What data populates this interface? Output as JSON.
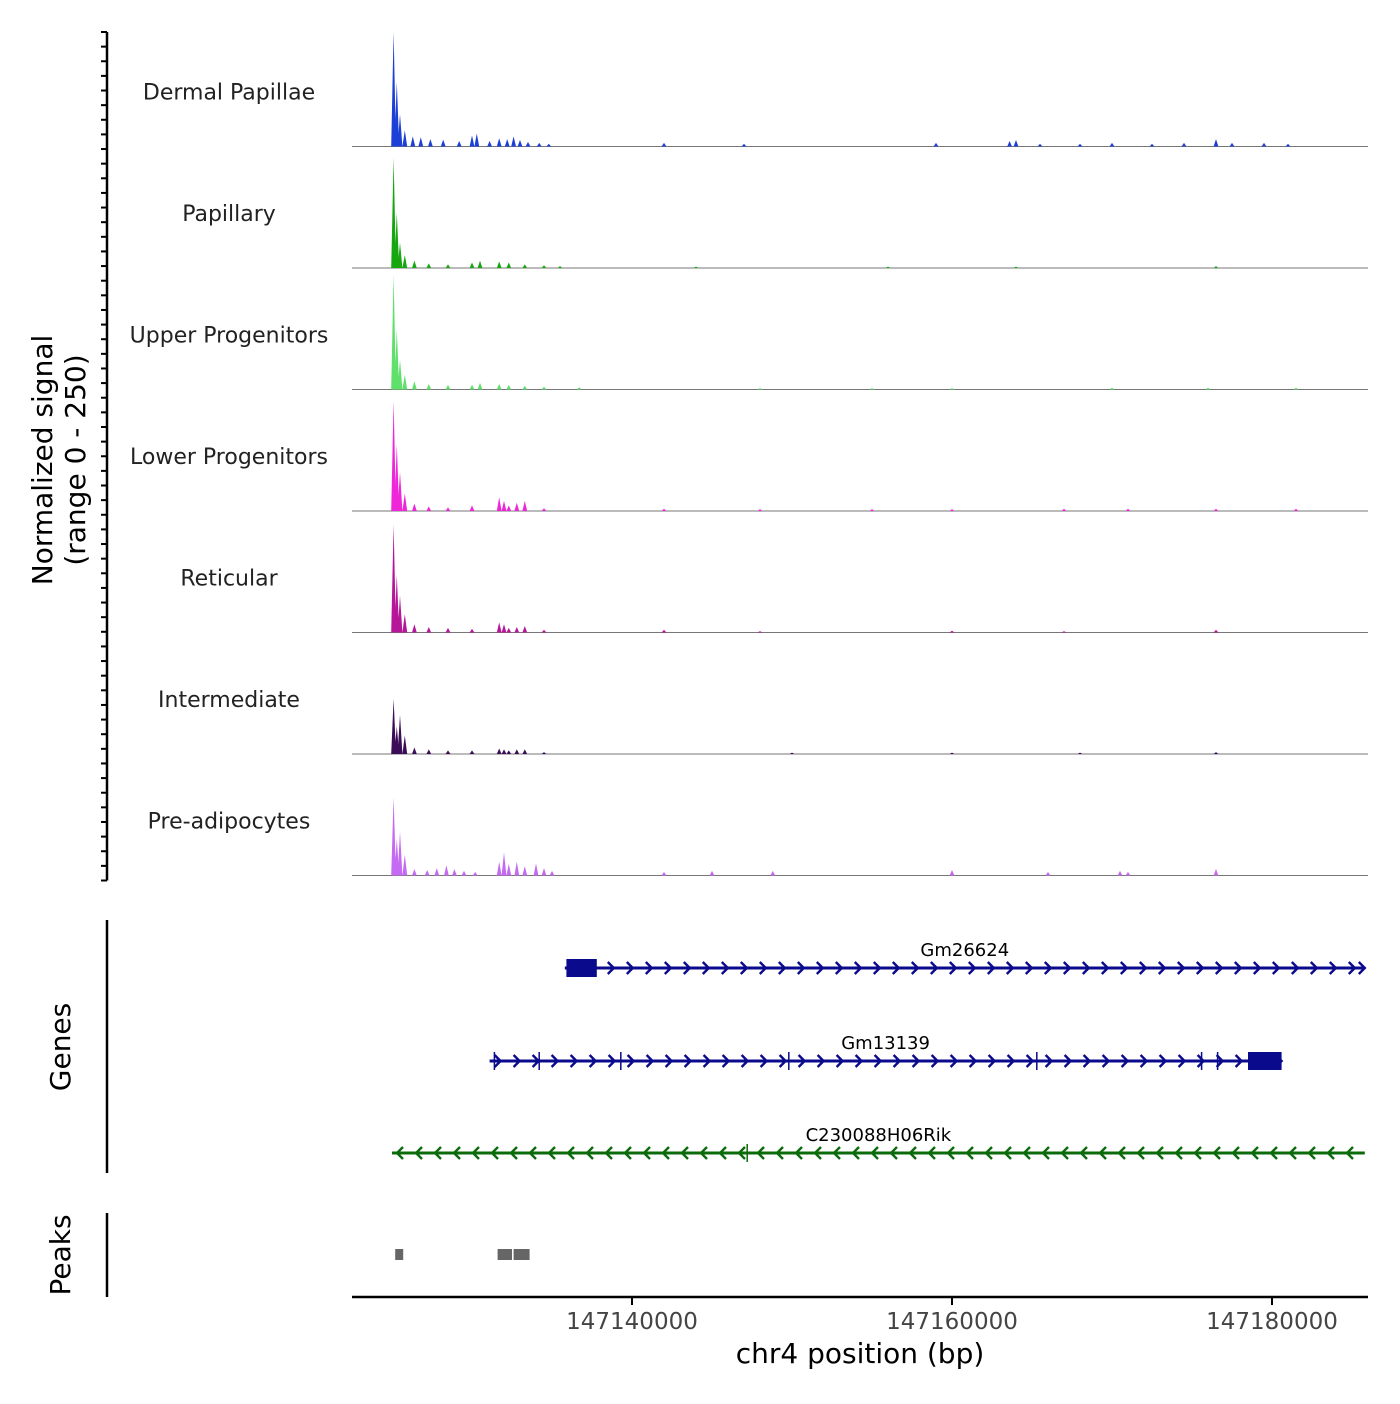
{
  "chart_data": {
    "type": "coverage",
    "title": "",
    "xlabel": "chr4 position (bp)",
    "ylabel": [
      "Normalized signal",
      "(range 0 - 250)"
    ],
    "y_range": [
      0,
      250
    ],
    "xlim": [
      147122500,
      147186000
    ],
    "x_ticks": [
      147140000,
      147160000,
      147180000
    ],
    "x_tick_labels": [
      "147140000",
      "147160000",
      "147180000"
    ],
    "tracks": [
      {
        "name": "Dermal Papillae",
        "color": "#1c3fd6",
        "peaks": [
          [
            147125100,
            250
          ],
          [
            147125300,
            140
          ],
          [
            147125500,
            70
          ],
          [
            147125800,
            35
          ],
          [
            147126300,
            22
          ],
          [
            147126800,
            20
          ],
          [
            147127400,
            16
          ],
          [
            147128200,
            15
          ],
          [
            147129200,
            12
          ],
          [
            147130000,
            24
          ],
          [
            147130300,
            28
          ],
          [
            147131100,
            12
          ],
          [
            147131700,
            18
          ],
          [
            147132200,
            16
          ],
          [
            147132600,
            22
          ],
          [
            147133000,
            14
          ],
          [
            147133500,
            10
          ],
          [
            147134200,
            8
          ],
          [
            147134800,
            6
          ],
          [
            147142000,
            8
          ],
          [
            147147000,
            6
          ],
          [
            147159000,
            8
          ],
          [
            147163600,
            12
          ],
          [
            147164000,
            14
          ],
          [
            147165500,
            6
          ],
          [
            147168000,
            6
          ],
          [
            147170000,
            8
          ],
          [
            147172500,
            6
          ],
          [
            147174500,
            8
          ],
          [
            147176500,
            16
          ],
          [
            147177500,
            8
          ],
          [
            147179500,
            8
          ],
          [
            147181000,
            6
          ]
        ]
      },
      {
        "name": "Papillary",
        "color": "#16a60f",
        "peaks": [
          [
            147125100,
            240
          ],
          [
            147125300,
            120
          ],
          [
            147125500,
            55
          ],
          [
            147125800,
            28
          ],
          [
            147126400,
            16
          ],
          [
            147127300,
            10
          ],
          [
            147128500,
            8
          ],
          [
            147130000,
            12
          ],
          [
            147130500,
            16
          ],
          [
            147131700,
            14
          ],
          [
            147132300,
            12
          ],
          [
            147133300,
            8
          ],
          [
            147134500,
            6
          ],
          [
            147135500,
            4
          ],
          [
            147144000,
            3
          ],
          [
            147156000,
            3
          ],
          [
            147164000,
            3
          ],
          [
            147176500,
            4
          ]
        ]
      },
      {
        "name": "Upper Progenitors",
        "color": "#5ee06a",
        "peaks": [
          [
            147125100,
            250
          ],
          [
            147125300,
            130
          ],
          [
            147125500,
            65
          ],
          [
            147125800,
            32
          ],
          [
            147126400,
            18
          ],
          [
            147127300,
            12
          ],
          [
            147128500,
            10
          ],
          [
            147130000,
            10
          ],
          [
            147130500,
            14
          ],
          [
            147131700,
            12
          ],
          [
            147132300,
            10
          ],
          [
            147133300,
            8
          ],
          [
            147134500,
            6
          ],
          [
            147136700,
            5
          ],
          [
            147148000,
            3
          ],
          [
            147155000,
            3
          ],
          [
            147160000,
            3
          ],
          [
            147170000,
            4
          ],
          [
            147176000,
            4
          ],
          [
            147181500,
            4
          ]
        ]
      },
      {
        "name": "Lower Progenitors",
        "color": "#ee27d8",
        "peaks": [
          [
            147125100,
            240
          ],
          [
            147125300,
            145
          ],
          [
            147125500,
            85
          ],
          [
            147125800,
            38
          ],
          [
            147126400,
            16
          ],
          [
            147127300,
            10
          ],
          [
            147128500,
            8
          ],
          [
            147130000,
            12
          ],
          [
            147131700,
            30
          ],
          [
            147132000,
            22
          ],
          [
            147132300,
            12
          ],
          [
            147132800,
            18
          ],
          [
            147133300,
            22
          ],
          [
            147134500,
            6
          ],
          [
            147142000,
            5
          ],
          [
            147148000,
            4
          ],
          [
            147155000,
            4
          ],
          [
            147160000,
            4
          ],
          [
            147167000,
            5
          ],
          [
            147171000,
            5
          ],
          [
            147176500,
            5
          ],
          [
            147181500,
            5
          ]
        ]
      },
      {
        "name": "Reticular",
        "color": "#b61799",
        "peaks": [
          [
            147125100,
            235
          ],
          [
            147125300,
            125
          ],
          [
            147125500,
            80
          ],
          [
            147125800,
            40
          ],
          [
            147126400,
            18
          ],
          [
            147127300,
            12
          ],
          [
            147128500,
            10
          ],
          [
            147130000,
            8
          ],
          [
            147131700,
            22
          ],
          [
            147132000,
            18
          ],
          [
            147132300,
            10
          ],
          [
            147132800,
            12
          ],
          [
            147133300,
            14
          ],
          [
            147134500,
            6
          ],
          [
            147142000,
            6
          ],
          [
            147148000,
            3
          ],
          [
            147160000,
            4
          ],
          [
            147167000,
            3
          ],
          [
            147176500,
            6
          ]
        ]
      },
      {
        "name": "Intermediate",
        "color": "#3a0d56",
        "peaks": [
          [
            147125100,
            120
          ],
          [
            147125300,
            60
          ],
          [
            147125500,
            85
          ],
          [
            147125800,
            40
          ],
          [
            147126400,
            14
          ],
          [
            147127300,
            10
          ],
          [
            147128500,
            8
          ],
          [
            147130000,
            8
          ],
          [
            147131700,
            12
          ],
          [
            147132000,
            10
          ],
          [
            147132300,
            8
          ],
          [
            147132800,
            10
          ],
          [
            147133300,
            10
          ],
          [
            147134500,
            4
          ],
          [
            147150000,
            3
          ],
          [
            147160000,
            3
          ],
          [
            147168000,
            3
          ],
          [
            147176500,
            4
          ]
        ]
      },
      {
        "name": "Pre-adipocytes",
        "color": "#c56af2",
        "peaks": [
          [
            147125100,
            170
          ],
          [
            147125300,
            80
          ],
          [
            147125500,
            95
          ],
          [
            147125800,
            45
          ],
          [
            147126400,
            14
          ],
          [
            147127200,
            12
          ],
          [
            147127800,
            16
          ],
          [
            147128400,
            22
          ],
          [
            147128900,
            14
          ],
          [
            147129500,
            10
          ],
          [
            147130200,
            8
          ],
          [
            147131700,
            30
          ],
          [
            147132000,
            50
          ],
          [
            147132300,
            25
          ],
          [
            147132800,
            30
          ],
          [
            147133300,
            20
          ],
          [
            147134000,
            26
          ],
          [
            147134500,
            16
          ],
          [
            147135000,
            10
          ],
          [
            147142000,
            8
          ],
          [
            147145000,
            10
          ],
          [
            147148800,
            10
          ],
          [
            147160000,
            12
          ],
          [
            147166000,
            8
          ],
          [
            147170500,
            10
          ],
          [
            147171000,
            8
          ],
          [
            147176500,
            14
          ]
        ]
      }
    ],
    "genes": [
      {
        "name": "Gm26624",
        "strand": "+",
        "color": "#0a0a8c",
        "start": 147135800,
        "end": 147185800,
        "exons": [
          [
            147135900,
            147137800
          ]
        ],
        "introns_marks": []
      },
      {
        "name": "Gm13139",
        "strand": "+",
        "color": "#0a0a8c",
        "start": 147131100,
        "end": 147180600,
        "exons": [
          [
            147178500,
            147180600
          ]
        ],
        "introns_marks": [
          147131400,
          147134200,
          147139300,
          147149800,
          147165300,
          147175600,
          147176600
        ]
      },
      {
        "name": "C230088H06Rik",
        "strand": "-",
        "color": "#0b6b0b",
        "start": 147125000,
        "end": 147185800,
        "exons": [],
        "introns_marks": [
          147147200
        ]
      }
    ],
    "gene_track_label": "Genes",
    "peak_track_label": "Peaks",
    "peaks_regions": [
      [
        147125200,
        147125700
      ],
      [
        147131600,
        147132500
      ],
      [
        147132600,
        147133600
      ]
    ],
    "peak_color": "#666666"
  }
}
